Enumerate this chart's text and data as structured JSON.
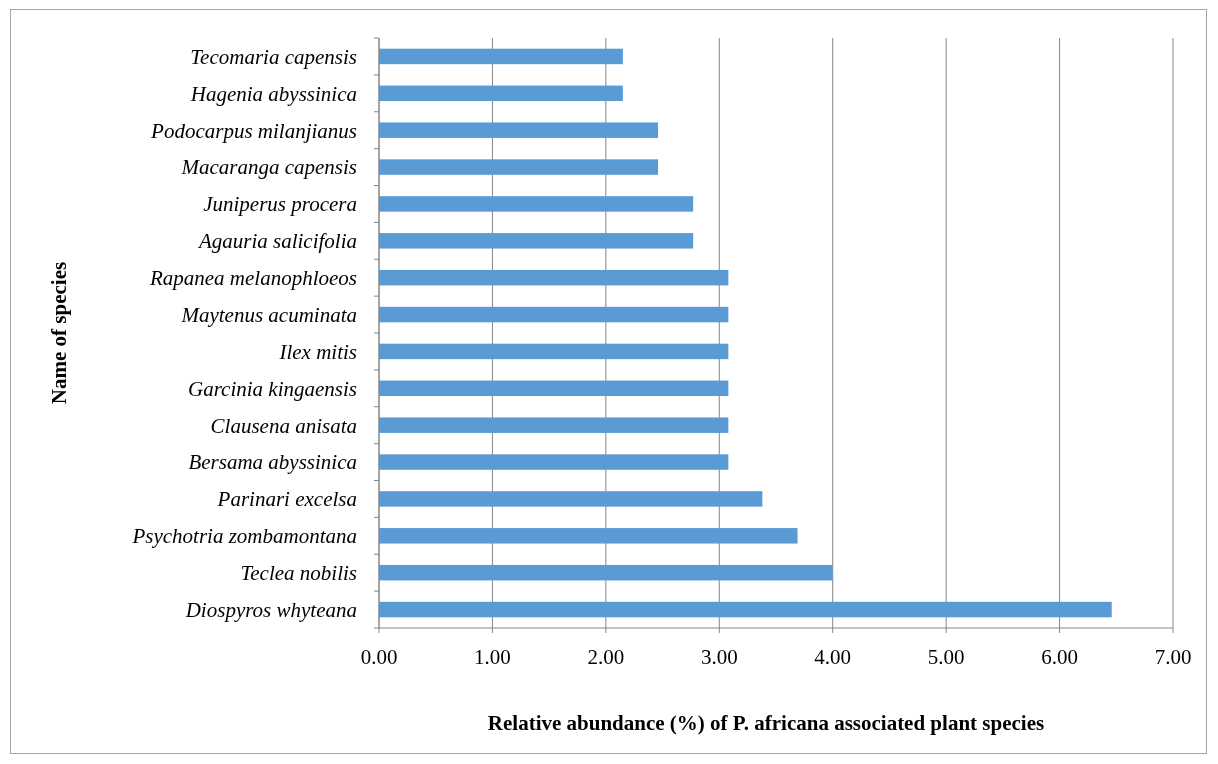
{
  "chart_data": {
    "type": "bar",
    "orientation": "horizontal",
    "xlabel": "Relative abundance (%) of P. africana associated plant species",
    "ylabel": "Name of species",
    "categories": [
      "Tecomaria capensis",
      "Hagenia abyssinica",
      "Podocarpus milanjianus",
      "Macaranga capensis",
      "Juniperus procera",
      "Agauria salicifolia",
      "Rapanea melanophloeos",
      "Maytenus acuminata",
      "Ilex mitis",
      "Garcinia kingaensis",
      "Clausena anisata",
      "Bersama abyssinica",
      "Parinari excelsa",
      "Psychotria zombamontana",
      "Teclea nobilis",
      "Diospyros whyteana"
    ],
    "values": [
      2.15,
      2.15,
      2.46,
      2.46,
      2.77,
      2.77,
      3.08,
      3.08,
      3.08,
      3.08,
      3.08,
      3.08,
      3.38,
      3.69,
      4.0,
      6.46
    ],
    "color": "#5b9bd5",
    "xlim": [
      0,
      7
    ],
    "xticks": [
      {
        "value": 0,
        "label": "0.00"
      },
      {
        "value": 1,
        "label": "1.00"
      },
      {
        "value": 2,
        "label": "2.00"
      },
      {
        "value": 3,
        "label": "3.00"
      },
      {
        "value": 4,
        "label": "4.00"
      },
      {
        "value": 5,
        "label": "5.00"
      },
      {
        "value": 6,
        "label": "6.00"
      },
      {
        "value": 7,
        "label": "7.00"
      }
    ],
    "grid": "x"
  }
}
